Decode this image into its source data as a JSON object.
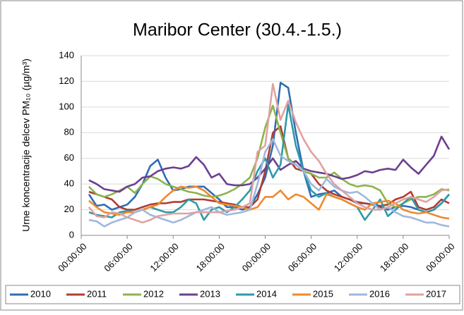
{
  "chart_data": {
    "type": "line",
    "title": "Maribor Center (30.4.-1.5.)",
    "y_label": "Urne koncentracije  delcev PM₁₀ (µg/m³)",
    "categories": [
      "00:00:00",
      null,
      null,
      null,
      null,
      null,
      "06:00:00",
      null,
      null,
      null,
      null,
      null,
      "12:00:00",
      null,
      null,
      null,
      null,
      null,
      "18:00:00",
      null,
      null,
      null,
      null,
      null,
      "00:00:00",
      null,
      null,
      null,
      null,
      null,
      "06:00:00",
      null,
      null,
      null,
      null,
      null,
      "12:00:00",
      null,
      null,
      null,
      null,
      null,
      "18:00:00",
      null,
      null,
      null,
      null,
      null,
      "00:00:00"
    ],
    "ylim": [
      0,
      140
    ],
    "yticks": [
      0,
      20,
      40,
      60,
      80,
      100,
      120,
      140
    ],
    "grid": true,
    "legend": "bottom",
    "series": [
      {
        "name": "2010",
        "color": "#2f6db5",
        "values": [
          null,
          32,
          23,
          24,
          20,
          22,
          24,
          30,
          40,
          54,
          59,
          45,
          35,
          36,
          38,
          38,
          38,
          33,
          28,
          22,
          22,
          20,
          22,
          32,
          45,
          70,
          119,
          115,
          80,
          50,
          30,
          32,
          33,
          35,
          30,
          28,
          25,
          25,
          24,
          22,
          20,
          22,
          23,
          22,
          20,
          18,
          20,
          25,
          32
        ]
      },
      {
        "name": "2011",
        "color": "#b23b30",
        "values": [
          null,
          34,
          32,
          30,
          28,
          22,
          20,
          20,
          22,
          24,
          25,
          25,
          26,
          26,
          28,
          28,
          28,
          27,
          26,
          25,
          24,
          22,
          22,
          28,
          50,
          80,
          85,
          60,
          52,
          50,
          48,
          40,
          35,
          32,
          30,
          28,
          26,
          25,
          24,
          23,
          24,
          28,
          30,
          34,
          22,
          20,
          22,
          28,
          25
        ]
      },
      {
        "name": "2012",
        "color": "#8cb44a",
        "values": [
          null,
          38,
          32,
          30,
          32,
          35,
          38,
          33,
          40,
          46,
          44,
          40,
          38,
          36,
          34,
          33,
          31,
          30,
          31,
          33,
          36,
          40,
          45,
          60,
          84,
          101,
          80,
          60,
          55,
          50,
          48,
          45,
          45,
          49,
          44,
          40,
          38,
          39,
          38,
          35,
          25,
          22,
          25,
          28,
          30,
          30,
          32,
          36,
          35
        ]
      },
      {
        "name": "2013",
        "color": "#6b3f8f",
        "values": [
          null,
          43,
          40,
          36,
          35,
          34,
          38,
          40,
          45,
          46,
          50,
          52,
          53,
          52,
          54,
          61,
          55,
          45,
          48,
          40,
          39,
          39,
          40,
          45,
          52,
          60,
          51,
          55,
          58,
          52,
          50,
          49,
          48,
          46,
          44,
          45,
          47,
          50,
          49,
          51,
          52,
          51,
          59,
          53,
          48,
          55,
          62,
          77,
          67
        ]
      },
      {
        "name": "2014",
        "color": "#2e9aa8",
        "values": [
          null,
          18,
          16,
          15,
          14,
          18,
          19,
          18,
          20,
          22,
          20,
          18,
          18,
          22,
          28,
          25,
          12,
          20,
          22,
          18,
          22,
          28,
          35,
          50,
          60,
          45,
          55,
          102,
          70,
          50,
          35,
          30,
          33,
          30,
          28,
          25,
          22,
          12,
          20,
          28,
          15,
          20,
          25,
          30,
          20,
          18,
          20,
          25,
          32
        ]
      },
      {
        "name": "2015",
        "color": "#ee8a2e",
        "values": [
          null,
          27,
          22,
          18,
          17,
          16,
          18,
          18,
          20,
          22,
          24,
          30,
          35,
          38,
          37,
          38,
          35,
          30,
          25,
          24,
          23,
          22,
          20,
          22,
          30,
          30,
          35,
          28,
          32,
          30,
          25,
          20,
          32,
          30,
          28,
          25,
          22,
          20,
          25,
          26,
          27,
          25,
          20,
          18,
          17,
          18,
          16,
          14,
          13
        ]
      },
      {
        "name": "2016",
        "color": "#9fb7dc",
        "values": [
          null,
          12,
          11,
          7,
          10,
          12,
          14,
          18,
          20,
          16,
          14,
          12,
          10,
          12,
          15,
          18,
          20,
          22,
          18,
          16,
          17,
          18,
          20,
          40,
          65,
          75,
          62,
          58,
          55,
          50,
          40,
          35,
          44,
          38,
          35,
          33,
          34,
          30,
          25,
          20,
          22,
          18,
          15,
          14,
          12,
          10,
          10,
          8,
          7
        ]
      },
      {
        "name": "2017",
        "color": "#e0a2a2",
        "values": [
          null,
          22,
          15,
          14,
          18,
          17,
          14,
          12,
          10,
          12,
          15,
          16,
          17,
          17,
          17,
          18,
          18,
          18,
          18,
          19,
          20,
          22,
          25,
          65,
          70,
          118,
          90,
          105,
          88,
          75,
          65,
          58,
          48,
          40,
          35,
          30,
          25,
          22,
          20,
          20,
          22,
          25,
          28,
          30,
          28,
          26,
          30,
          35,
          36
        ]
      }
    ]
  }
}
